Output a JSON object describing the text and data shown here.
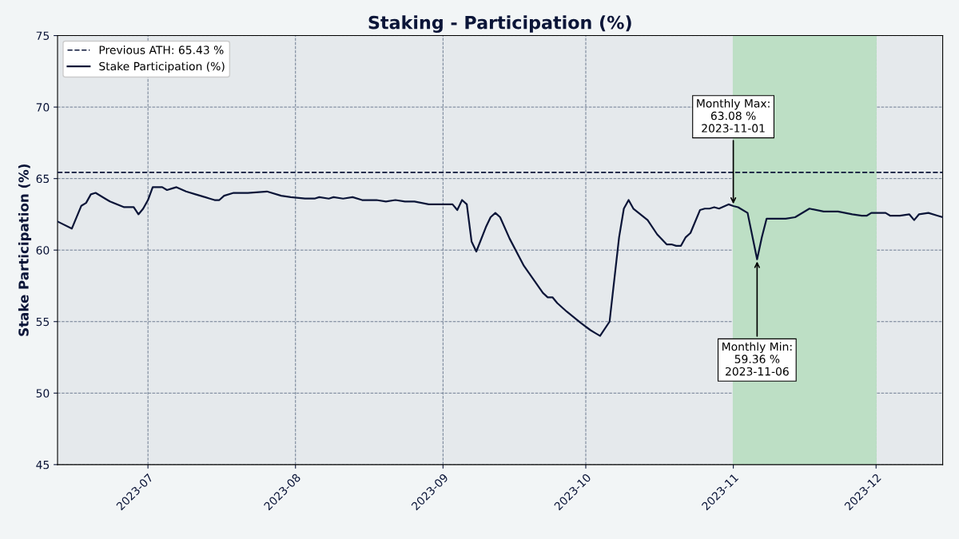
{
  "chart_data": {
    "type": "line",
    "title": "Staking - Participation (%)",
    "ylabel": "Stake Participation (%)",
    "xlim": [
      "2023-06-12",
      "2023-12-15"
    ],
    "ylim": [
      45,
      75
    ],
    "yticks": [
      45,
      50,
      55,
      60,
      65,
      70,
      75
    ],
    "xticks": [
      {
        "value": "2023-07-01",
        "label": "2023-07"
      },
      {
        "value": "2023-08-01",
        "label": "2023-08"
      },
      {
        "value": "2023-09-01",
        "label": "2023-09"
      },
      {
        "value": "2023-10-01",
        "label": "2023-10"
      },
      {
        "value": "2023-11-01",
        "label": "2023-11"
      },
      {
        "value": "2023-12-01",
        "label": "2023-12"
      }
    ],
    "grid": true,
    "legend": "top left",
    "marker": "none",
    "line_style": "solid",
    "ref_lines": [
      {
        "axis": "y",
        "value": 65.43,
        "label": "Previous ATH: 65.43 %",
        "color": "#0b1538",
        "line_style": "dashed"
      }
    ],
    "bands": [
      {
        "axis": "x",
        "from": "2023-11-01",
        "to": "2023-12-01",
        "color": "#bddfc5"
      }
    ],
    "annotations": [
      {
        "text": "Monthly Max:\n63.08 %\n2023-11-01",
        "x": "2023-11-01",
        "y": 63.08
      },
      {
        "text": "Monthly Min:\n59.36 %\n2023-11-06",
        "x": "2023-11-06",
        "y": 59.36
      }
    ],
    "series": [
      {
        "name": "Stake Participation (%)",
        "color": "#0b1538",
        "x": [
          "2023-06-12",
          "2023-06-15",
          "2023-06-17",
          "2023-06-18",
          "2023-06-19",
          "2023-06-20",
          "2023-06-22",
          "2023-06-23",
          "2023-06-26",
          "2023-06-28",
          "2023-06-29",
          "2023-06-30",
          "2023-07-01",
          "2023-07-02",
          "2023-07-04",
          "2023-07-05",
          "2023-07-06",
          "2023-07-07",
          "2023-07-09",
          "2023-07-11",
          "2023-07-12",
          "2023-07-13",
          "2023-07-14",
          "2023-07-15",
          "2023-07-16",
          "2023-07-17",
          "2023-07-19",
          "2023-07-22",
          "2023-07-26",
          "2023-07-29",
          "2023-07-31",
          "2023-08-03",
          "2023-08-05",
          "2023-08-06",
          "2023-08-08",
          "2023-08-09",
          "2023-08-11",
          "2023-08-13",
          "2023-08-15",
          "2023-08-18",
          "2023-08-20",
          "2023-08-22",
          "2023-08-24",
          "2023-08-26",
          "2023-08-29",
          "2023-09-01",
          "2023-09-03",
          "2023-09-04",
          "2023-09-05",
          "2023-09-06",
          "2023-09-07",
          "2023-09-08",
          "2023-09-10",
          "2023-09-11",
          "2023-09-12",
          "2023-09-13",
          "2023-09-15",
          "2023-09-18",
          "2023-09-22",
          "2023-09-23",
          "2023-09-24",
          "2023-09-25",
          "2023-09-27",
          "2023-09-30",
          "2023-10-02",
          "2023-10-03",
          "2023-10-04",
          "2023-10-06",
          "2023-10-08",
          "2023-10-09",
          "2023-10-10",
          "2023-10-11",
          "2023-10-14",
          "2023-10-16",
          "2023-10-18",
          "2023-10-19",
          "2023-10-20",
          "2023-10-21",
          "2023-10-22",
          "2023-10-23",
          "2023-10-25",
          "2023-10-26",
          "2023-10-27",
          "2023-10-28",
          "2023-10-29",
          "2023-10-31",
          "2023-11-01",
          "2023-11-02",
          "2023-11-04",
          "2023-11-06",
          "2023-11-07",
          "2023-11-08",
          "2023-11-09",
          "2023-11-12",
          "2023-11-14",
          "2023-11-17",
          "2023-11-20",
          "2023-11-23",
          "2023-11-26",
          "2023-11-28",
          "2023-11-29",
          "2023-11-30",
          "2023-12-03",
          "2023-12-04",
          "2023-12-06",
          "2023-12-08",
          "2023-12-09",
          "2023-12-10",
          "2023-12-12",
          "2023-12-14",
          "2023-12-15"
        ],
        "values": [
          62.0,
          61.5,
          63.1,
          63.3,
          63.9,
          64.0,
          63.6,
          63.4,
          63.0,
          63.0,
          62.5,
          62.9,
          63.5,
          64.4,
          64.4,
          64.2,
          64.3,
          64.4,
          64.1,
          63.9,
          63.8,
          63.7,
          63.6,
          63.5,
          63.5,
          63.8,
          64.0,
          64.0,
          64.1,
          63.8,
          63.7,
          63.6,
          63.6,
          63.7,
          63.6,
          63.7,
          63.6,
          63.7,
          63.5,
          63.5,
          63.4,
          63.5,
          63.4,
          63.4,
          63.2,
          63.2,
          63.2,
          62.8,
          63.5,
          63.2,
          60.6,
          59.9,
          61.6,
          62.3,
          62.6,
          62.3,
          60.8,
          58.9,
          57.0,
          56.7,
          56.7,
          56.3,
          55.7,
          54.9,
          54.4,
          54.2,
          54.0,
          55.0,
          60.9,
          62.9,
          63.5,
          62.9,
          62.1,
          61.1,
          60.4,
          60.4,
          60.3,
          60.3,
          60.9,
          61.2,
          62.8,
          62.9,
          62.9,
          63.0,
          62.9,
          63.2,
          63.08,
          63.0,
          62.6,
          59.36,
          60.9,
          62.2,
          62.2,
          62.2,
          62.3,
          62.9,
          62.7,
          62.7,
          62.5,
          62.4,
          62.4,
          62.6,
          62.6,
          62.4,
          62.4,
          62.5,
          62.1,
          62.5,
          62.6,
          62.4,
          62.3
        ]
      }
    ]
  }
}
